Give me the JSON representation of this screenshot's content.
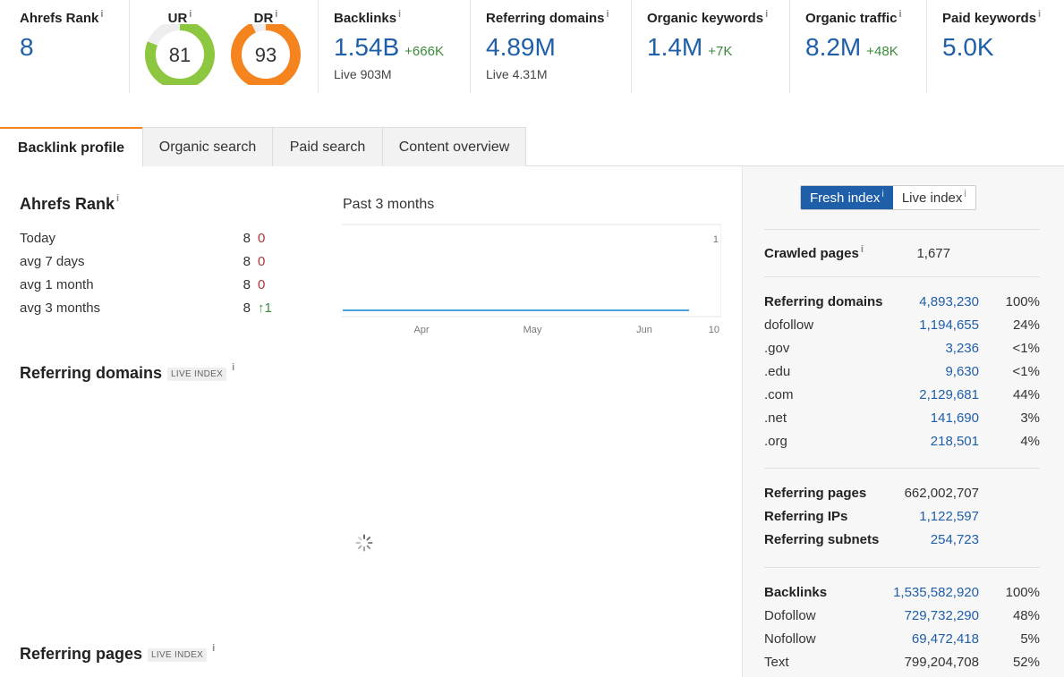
{
  "metrics": {
    "ahrefs_rank": {
      "label": "Ahrefs Rank",
      "value": "8"
    },
    "ur": {
      "label": "UR",
      "value": "81",
      "score": 81,
      "color": "#8dc63f"
    },
    "dr": {
      "label": "DR",
      "value": "93",
      "score": 93,
      "color": "#f5841f"
    },
    "backlinks": {
      "label": "Backlinks",
      "value": "1.54B",
      "delta": "+666K",
      "sub": "Live 903M"
    },
    "referring_domains": {
      "label": "Referring domains",
      "value": "4.89M",
      "sub": "Live 4.31M"
    },
    "organic_keywords": {
      "label": "Organic keywords",
      "value": "1.4M",
      "delta": "+7K"
    },
    "organic_traffic": {
      "label": "Organic traffic",
      "value": "8.2M",
      "delta": "+48K"
    },
    "paid_keywords": {
      "label": "Paid keywords",
      "value": "5.0K"
    },
    "info_glyph": "i"
  },
  "tabs": [
    "Backlink profile",
    "Organic search",
    "Paid search",
    "Content overview"
  ],
  "ahrefs_rank_section": {
    "title": "Ahrefs Rank",
    "rows": [
      {
        "label": "Today",
        "value": "8",
        "delta": "0"
      },
      {
        "label": "avg 7 days",
        "value": "8",
        "delta": "0"
      },
      {
        "label": "avg 1 month",
        "value": "8",
        "delta": "0"
      },
      {
        "label": "avg 3 months",
        "value": "8",
        "delta": "↑1"
      }
    ]
  },
  "chart_data": {
    "type": "line",
    "title": "Past 3 months",
    "x_ticks": [
      "Apr",
      "May",
      "Jun"
    ],
    "y_ticks": [
      "1",
      "10"
    ],
    "series": [
      {
        "values": [
          8,
          8,
          8,
          8,
          8,
          8,
          8,
          8,
          8,
          8,
          8,
          8,
          8
        ]
      }
    ],
    "color": "#4aa3df"
  },
  "referring_domains_section": {
    "title": "Referring domains",
    "badge": "LIVE INDEX"
  },
  "referring_pages_section": {
    "title": "Referring pages",
    "badge": "LIVE INDEX"
  },
  "right_panel": {
    "toggle": {
      "fresh": "Fresh index",
      "live": "Live index"
    },
    "crawled": {
      "label": "Crawled pages",
      "value": "1,677"
    },
    "ref_domains": [
      {
        "label": "Referring domains",
        "value": "4,893,230",
        "pct": "100%",
        "bold": true
      },
      {
        "label": "dofollow",
        "value": "1,194,655",
        "pct": "24%"
      },
      {
        "label": ".gov",
        "value": "3,236",
        "pct": "<1%"
      },
      {
        "label": ".edu",
        "value": "9,630",
        "pct": "<1%"
      },
      {
        "label": ".com",
        "value": "2,129,681",
        "pct": "44%"
      },
      {
        "label": ".net",
        "value": "141,690",
        "pct": "3%"
      },
      {
        "label": ".org",
        "value": "218,501",
        "pct": "4%"
      }
    ],
    "ref_pages": [
      {
        "label": "Referring pages",
        "value": "662,002,707",
        "link": false
      },
      {
        "label": "Referring IPs",
        "value": "1,122,597",
        "link": true
      },
      {
        "label": "Referring subnets",
        "value": "254,723",
        "link": true
      }
    ],
    "backlinks": [
      {
        "label": "Backlinks",
        "value": "1,535,582,920",
        "pct": "100%",
        "bold": true,
        "link": true
      },
      {
        "label": "Dofollow",
        "value": "729,732,290",
        "pct": "48%",
        "link": true
      },
      {
        "label": "Nofollow",
        "value": "69,472,418",
        "pct": "5%",
        "link": true
      },
      {
        "label": "Text",
        "value": "799,204,708",
        "pct": "52%",
        "link": false
      }
    ]
  }
}
